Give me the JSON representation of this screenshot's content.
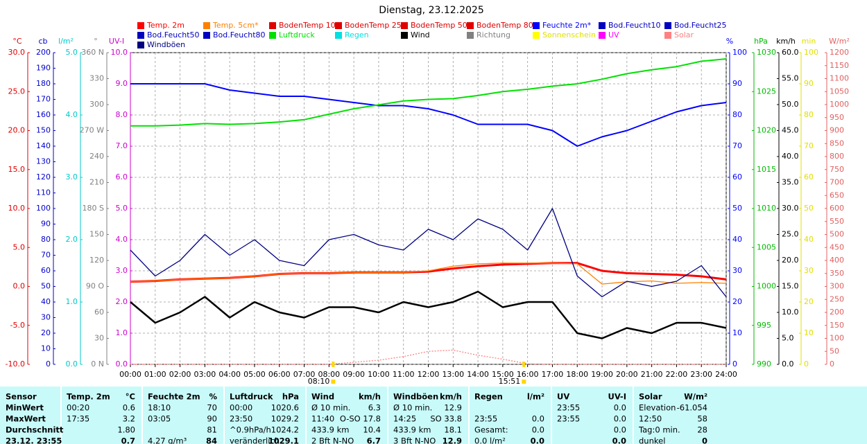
{
  "chart_data": {
    "type": "line",
    "title": "Dienstag, 23.12.2025",
    "xlim": [
      0,
      24
    ],
    "xticks": [
      {
        "value": 0,
        "label": "00:00"
      },
      {
        "value": 1,
        "label": "01:00"
      },
      {
        "value": 2,
        "label": "02:00"
      },
      {
        "value": 3,
        "label": "03:00"
      },
      {
        "value": 4,
        "label": "04:00"
      },
      {
        "value": 5,
        "label": "05:00"
      },
      {
        "value": 6,
        "label": "06:00"
      },
      {
        "value": 7,
        "label": "07:00"
      },
      {
        "value": 8,
        "label": "08:00"
      },
      {
        "value": 9,
        "label": "09:00"
      },
      {
        "value": 10,
        "label": "10:00"
      },
      {
        "value": 11,
        "label": "11:00"
      },
      {
        "value": 12,
        "label": "12:00"
      },
      {
        "value": 13,
        "label": "13:00"
      },
      {
        "value": 14,
        "label": "14:00"
      },
      {
        "value": 15,
        "label": "15:00"
      },
      {
        "value": 16,
        "label": "16:00"
      },
      {
        "value": 17,
        "label": "17:00"
      },
      {
        "value": 18,
        "label": "18:00"
      },
      {
        "value": 19,
        "label": "19:00"
      },
      {
        "value": 20,
        "label": "20:00"
      },
      {
        "value": 21,
        "label": "21:00"
      },
      {
        "value": 22,
        "label": "22:00"
      },
      {
        "value": 23,
        "label": "23:00"
      },
      {
        "value": 24,
        "label": "24:00"
      }
    ],
    "x": [
      0,
      1,
      2,
      3,
      4,
      5,
      6,
      7,
      8,
      9,
      10,
      11,
      12,
      13,
      14,
      15,
      16,
      17,
      18,
      19,
      20,
      21,
      22,
      23,
      24
    ],
    "grid": true,
    "axes": [
      {
        "unit": "°C",
        "color": "#e00000",
        "side": "left",
        "ylim": [
          -10,
          30
        ],
        "yticks": [
          {
            "value": -10,
            "label": "-10.0"
          },
          {
            "value": -5,
            "label": "-5.0"
          },
          {
            "value": 0,
            "label": "0.0"
          },
          {
            "value": 5,
            "label": "5.0"
          },
          {
            "value": 10,
            "label": "10.0"
          },
          {
            "value": 15,
            "label": "15.0"
          },
          {
            "value": 20,
            "label": "20.0"
          },
          {
            "value": 25,
            "label": "25.0"
          },
          {
            "value": 30,
            "label": "30.0"
          }
        ]
      },
      {
        "unit": "cb",
        "color": "#0000cc",
        "side": "left",
        "ylim": [
          0,
          200
        ],
        "yticks": [
          0,
          10,
          20,
          30,
          40,
          50,
          60,
          70,
          80,
          90,
          100,
          110,
          120,
          130,
          140,
          150,
          160,
          170,
          180,
          190,
          200
        ]
      },
      {
        "unit": "l/m²",
        "color": "#00c8c8",
        "side": "left",
        "ylim": [
          0,
          5
        ],
        "yticks": [
          {
            "value": 0,
            "label": "0.0"
          },
          {
            "value": 1,
            "label": "1.0"
          },
          {
            "value": 2,
            "label": "2.0"
          },
          {
            "value": 3,
            "label": "3.0"
          },
          {
            "value": 4,
            "label": "4.0"
          },
          {
            "value": 5,
            "label": "5.0"
          }
        ]
      },
      {
        "unit": "°",
        "color": "#808080",
        "side": "left",
        "ylim": [
          0,
          360
        ],
        "yticks": [
          {
            "value": 0,
            "label": "0 N"
          },
          30,
          60,
          {
            "value": 90,
            "label": "90 O"
          },
          120,
          150,
          {
            "value": 180,
            "label": "180 S"
          },
          210,
          240,
          {
            "value": 270,
            "label": "270 W"
          },
          300,
          330,
          {
            "value": 360,
            "label": "360 N"
          }
        ]
      },
      {
        "unit": "UV-I",
        "color": "#cc00cc",
        "side": "left",
        "ylim": [
          0,
          10
        ],
        "yticks": [
          {
            "value": 0,
            "label": "0.0"
          },
          {
            "value": 1,
            "label": "1.0"
          },
          {
            "value": 2,
            "label": "2.0"
          },
          {
            "value": 3,
            "label": "3.0"
          },
          {
            "value": 4,
            "label": "4.0"
          },
          {
            "value": 5,
            "label": "5.0"
          },
          {
            "value": 6,
            "label": "6.0"
          },
          {
            "value": 7,
            "label": "7.0"
          },
          {
            "value": 8,
            "label": "8.0"
          },
          {
            "value": 9,
            "label": "9.0"
          },
          {
            "value": 10,
            "label": "10.0"
          }
        ]
      },
      {
        "unit": "%",
        "color": "#0000ff",
        "side": "right",
        "ylim": [
          0,
          100
        ],
        "yticks": [
          0,
          10,
          20,
          30,
          40,
          50,
          60,
          70,
          80,
          90,
          100
        ]
      },
      {
        "unit": "hPa",
        "color": "#00bb00",
        "side": "right",
        "ylim": [
          990,
          1030
        ],
        "yticks": [
          990,
          995,
          1000,
          1005,
          1010,
          1015,
          1020,
          1025,
          1030
        ]
      },
      {
        "unit": "km/h",
        "color": "#000000",
        "side": "right",
        "ylim": [
          0,
          60
        ],
        "yticks": [
          {
            "value": 0,
            "label": "0.0"
          },
          {
            "value": 5,
            "label": "5.0"
          },
          {
            "value": 10,
            "label": "10.0"
          },
          {
            "value": 15,
            "label": "15.0"
          },
          {
            "value": 20,
            "label": "20.0"
          },
          {
            "value": 25,
            "label": "25.0"
          },
          {
            "value": 30,
            "label": "30.0"
          },
          {
            "value": 35,
            "label": "35.0"
          },
          {
            "value": 40,
            "label": "40.0"
          },
          {
            "value": 45,
            "label": "45.0"
          },
          {
            "value": 50,
            "label": "50.0"
          },
          {
            "value": 55,
            "label": "55.0"
          },
          {
            "value": 60,
            "label": "60.0"
          }
        ]
      },
      {
        "unit": "min",
        "color": "#e0e000",
        "side": "right",
        "ylim": [
          0,
          100
        ],
        "yticks": [
          0,
          10,
          20,
          30,
          40,
          50,
          60,
          70,
          80,
          90,
          100
        ]
      },
      {
        "unit": "W/m²",
        "color": "#e06060",
        "side": "right",
        "ylim": [
          0,
          1200
        ],
        "yticks": [
          0,
          50,
          100,
          150,
          200,
          250,
          300,
          350,
          400,
          450,
          500,
          550,
          600,
          650,
          700,
          750,
          800,
          850,
          900,
          950,
          1000,
          1050,
          1100,
          1150,
          1200
        ]
      }
    ],
    "series": [
      {
        "name": "Temp. 2m",
        "color": "#ff0000",
        "axis": "°C",
        "values": [
          0.6,
          0.7,
          0.9,
          1.0,
          1.1,
          1.3,
          1.6,
          1.7,
          1.7,
          1.8,
          1.8,
          1.8,
          1.9,
          2.3,
          2.6,
          2.8,
          2.9,
          3.0,
          3.0,
          2.0,
          1.7,
          1.6,
          1.5,
          1.3,
          0.9
        ]
      },
      {
        "name": "Temp. 5cm*",
        "color": "#ff8000",
        "axis": "°C",
        "values": [
          0.6,
          0.7,
          0.9,
          1.0,
          1.1,
          1.3,
          1.6,
          1.7,
          1.7,
          1.8,
          1.8,
          1.8,
          2.0,
          2.6,
          2.9,
          3.0,
          3.0,
          3.0,
          2.9,
          0.3,
          0.6,
          0.7,
          0.4,
          0.5,
          0.4
        ]
      },
      {
        "name": "BodenTemp 10",
        "color": "#e00000"
      },
      {
        "name": "BodenTemp 25",
        "color": "#e00000"
      },
      {
        "name": "BodenTemp 50",
        "color": "#e00000"
      },
      {
        "name": "BodenTemp 80",
        "color": "#e00000"
      },
      {
        "name": "Feuchte 2m*",
        "color": "#0000ff",
        "axis": "%",
        "values": [
          90,
          90,
          90,
          90,
          88,
          87,
          86,
          86,
          85,
          84,
          83,
          83,
          82,
          80,
          77,
          77,
          77,
          75,
          70,
          73,
          75,
          78,
          81,
          83,
          84
        ]
      },
      {
        "name": "Bod.Feucht10",
        "color": "#0000c0"
      },
      {
        "name": "Bod.Feucht25",
        "color": "#0000c0"
      },
      {
        "name": "Bod.Feucht50",
        "color": "#0000c0"
      },
      {
        "name": "Bod.Feucht80",
        "color": "#0000c0"
      },
      {
        "name": "Luftdruck",
        "color": "#00e000",
        "axis": "hPa",
        "values": [
          1020.6,
          1020.6,
          1020.7,
          1020.9,
          1020.8,
          1020.9,
          1021.1,
          1021.4,
          1022.1,
          1022.8,
          1023.3,
          1023.8,
          1024.0,
          1024.1,
          1024.5,
          1025.0,
          1025.3,
          1025.7,
          1026.0,
          1026.6,
          1027.3,
          1027.8,
          1028.2,
          1028.9,
          1029.2
        ]
      },
      {
        "name": "Regen",
        "color": "#00e0e0"
      },
      {
        "name": "Wind",
        "color": "#000000",
        "axis": "km/h",
        "values": [
          12,
          8,
          10,
          13,
          9,
          12,
          10,
          9,
          11,
          11,
          10,
          12,
          11,
          12,
          14,
          11,
          12,
          12,
          6,
          5,
          7,
          6,
          8,
          8,
          7
        ]
      },
      {
        "name": "Richtung",
        "color": "#808080"
      },
      {
        "name": "Sonnenschein",
        "color": "#ffff00"
      },
      {
        "name": "UV",
        "color": "#ff00ff"
      },
      {
        "name": "Solar",
        "color": "#ff8080",
        "axis": "W/m²",
        "values": [
          0,
          0,
          0,
          0,
          0,
          0,
          0,
          0,
          0,
          8,
          16,
          30,
          50,
          55,
          35,
          20,
          2,
          0,
          0,
          0,
          0,
          0,
          0,
          0,
          0
        ]
      },
      {
        "name": "Windböen",
        "color": "#000080",
        "axis": "km/h",
        "values": [
          22,
          17,
          20,
          25,
          21,
          24,
          20,
          19,
          24,
          25,
          23,
          22,
          26,
          24,
          28,
          26,
          22,
          30,
          17,
          13,
          16,
          15,
          16,
          19,
          13
        ]
      }
    ],
    "annotations": [
      {
        "text": "08:10",
        "x": 8.17,
        "color": "#ffd700"
      },
      {
        "text": "15:51",
        "x": 15.85,
        "color": "#ffd700"
      }
    ]
  },
  "table": {
    "header": [
      "Sensor",
      "Temp. 2m",
      "°C",
      "Feuchte 2m",
      "%",
      "Luftdruck",
      "hPa",
      "Wind",
      "km/h",
      "Windböen",
      "km/h",
      "Regen",
      "l/m²",
      "UV",
      "UV-I",
      "Solar",
      "W/m²"
    ],
    "rows": [
      [
        "MinWert",
        "00:20",
        "0.6",
        "18:10",
        "70",
        "00:00",
        "1020.6",
        "Ø 10 min.",
        "6.3",
        "Ø 10 min.",
        "12.9",
        null,
        null,
        "23:55",
        "0.0",
        "Elevation",
        "-61.054"
      ],
      [
        "MaxWert",
        "17:35",
        "3.2",
        "03:05",
        "90",
        "23:50",
        "1029.2",
        "11:40",
        "O-SO 17.8",
        "14:25",
        "SO 33.8",
        "23:55",
        "0.0",
        "23:55",
        "0.0",
        "12:50",
        "58"
      ],
      [
        "Durchschnitt",
        null,
        "1.80",
        null,
        "81",
        "^0.9hPa/h",
        "1024.2",
        "433.9 km",
        "10.4",
        "433.9 km",
        "18.1",
        "Gesamt:",
        "0.0",
        null,
        "0.0",
        "Tag:0 min.",
        "28"
      ],
      [
        "23.12. 23:55",
        null,
        "0.7",
        "4.27 g/m³",
        "84",
        "veränderlich",
        "1029.1",
        "2 Bft N-NO",
        "6.7",
        "3 Bft N-NO",
        "12.9",
        "0.0 l/m²",
        "0.0",
        null,
        "0.0",
        "dunkel",
        "0"
      ]
    ]
  }
}
